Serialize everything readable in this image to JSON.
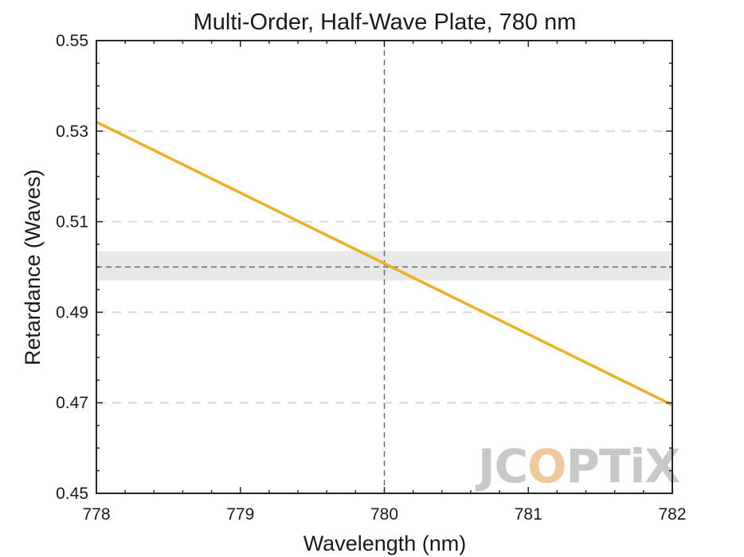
{
  "chart_data": {
    "type": "line",
    "title": "Multi-Order, Half-Wave Plate, 780 nm",
    "xlabel": "Wavelength (nm)",
    "ylabel": "Retardance (Waves)",
    "xlim": [
      778,
      782
    ],
    "ylim": [
      0.45,
      0.55
    ],
    "xticks": [
      "778",
      "779",
      "780",
      "781",
      "782"
    ],
    "yticks": [
      "0.45",
      "0.47",
      "0.49",
      "0.51",
      "0.53",
      "0.55"
    ],
    "series": [
      {
        "x": [
          778,
          782
        ],
        "y": [
          0.532,
          0.4695
        ],
        "color": "#EDB120"
      }
    ],
    "reference_lines": {
      "design_wavelength": 780,
      "target_retardance": 0.5,
      "tolerance_band": [
        0.497,
        0.5035
      ],
      "color": "#666666"
    },
    "band_color": "#e8e8e8",
    "grid": "horizontal-dashed",
    "watermark": {
      "text_before": "JC",
      "text_highlight": "O",
      "text_after": "PTiX",
      "color": "#c8c8c8",
      "highlight_color": "#f2c89a"
    }
  }
}
